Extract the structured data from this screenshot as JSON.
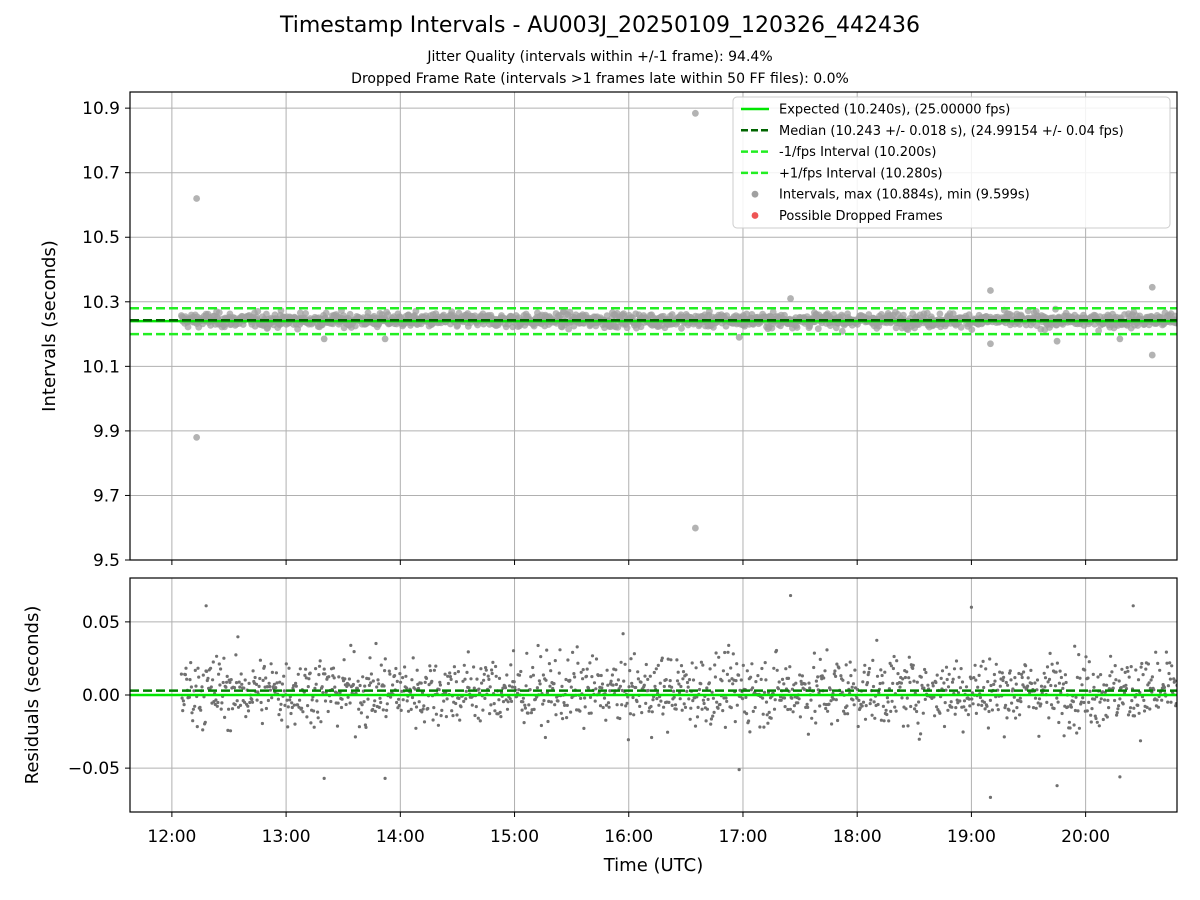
{
  "chart_data": [
    {
      "type": "scatter",
      "title": "Timestamp Intervals - AU003J_20250109_120326_442436",
      "subtitle_1": "Jitter Quality (intervals within +/-1 frame): 94.4%",
      "subtitle_2": "Dropped Frame Rate (intervals >1 frames late within 50 FF files): 0.0%",
      "ylabel": "Intervals (seconds)",
      "ylim": [
        9.5,
        10.95
      ],
      "yticks": [
        "9.5",
        "9.7",
        "9.9",
        "10.1",
        "10.3",
        "10.5",
        "10.7",
        "10.9"
      ],
      "ytick_values": [
        9.5,
        9.7,
        9.9,
        10.1,
        10.3,
        10.5,
        10.7,
        10.9
      ],
      "grid": true,
      "legend_position": "top-right",
      "lines": [
        {
          "name": "Expected (10.240s), (25.00000 fps)",
          "y": 10.24,
          "color": "#00e600",
          "style": "solid"
        },
        {
          "name": "Median (10.243 +/- 0.018 s), (24.99154 +/- 0.04 fps)",
          "y": 10.243,
          "color": "#006400",
          "style": "dashed"
        },
        {
          "name": "-1/fps Interval (10.200s)",
          "y": 10.2,
          "color": "#22ee22",
          "style": "dashed"
        },
        {
          "name": "+1/fps Interval (10.280s)",
          "y": 10.28,
          "color": "#22ee22",
          "style": "dashed"
        }
      ],
      "series": [
        {
          "name": "Intervals, max (10.884s), min (9.599s)",
          "color": "#a0a0a0",
          "band_center": 10.243,
          "band_spread": 0.018
        },
        {
          "name": "Possible Dropped Frames",
          "color": "#ee5555",
          "points": []
        }
      ],
      "outliers": [
        {
          "x": "12:13",
          "y": 10.62
        },
        {
          "x": "12:13",
          "y": 9.88
        },
        {
          "x": "16:35",
          "y": 10.884
        },
        {
          "x": "16:35",
          "y": 9.599
        },
        {
          "x": "19:10",
          "y": 10.335
        },
        {
          "x": "20:35",
          "y": 10.345
        },
        {
          "x": "20:35",
          "y": 10.135
        },
        {
          "x": "19:10",
          "y": 10.17
        },
        {
          "x": "13:20",
          "y": 10.185
        },
        {
          "x": "13:52",
          "y": 10.185
        },
        {
          "x": "16:58",
          "y": 10.19
        },
        {
          "x": "19:45",
          "y": 10.178
        },
        {
          "x": "20:18",
          "y": 10.185
        },
        {
          "x": "17:25",
          "y": 10.31
        }
      ]
    },
    {
      "type": "scatter",
      "ylabel": "Residuals (seconds)",
      "xlabel": "Time (UTC)",
      "xlim": [
        "11:38",
        "20:48"
      ],
      "xticks": [
        "12:00",
        "13:00",
        "14:00",
        "15:00",
        "16:00",
        "17:00",
        "18:00",
        "19:00",
        "20:00"
      ],
      "ylim": [
        -0.08,
        0.08
      ],
      "yticks": [
        "−0.05",
        "0.00",
        "0.05"
      ],
      "ytick_values": [
        -0.05,
        0.0,
        0.05
      ],
      "grid": true,
      "lines": [
        {
          "y": 0.0,
          "color": "#00e600",
          "style": "solid"
        },
        {
          "y": 0.003,
          "color": "#008000",
          "style": "dashed"
        }
      ],
      "series": [
        {
          "color": "#707070",
          "band_center": 0.003,
          "band_spread": 0.018
        }
      ],
      "outliers": [
        {
          "x": "17:25",
          "y": 0.068
        },
        {
          "x": "19:10",
          "y": -0.07
        },
        {
          "x": "19:45",
          "y": -0.062
        },
        {
          "x": "13:20",
          "y": -0.057
        },
        {
          "x": "13:52",
          "y": -0.057
        },
        {
          "x": "20:18",
          "y": -0.056
        },
        {
          "x": "16:58",
          "y": -0.051
        },
        {
          "x": "12:18",
          "y": 0.061
        },
        {
          "x": "20:25",
          "y": 0.061
        },
        {
          "x": "19:00",
          "y": 0.06
        }
      ]
    }
  ]
}
